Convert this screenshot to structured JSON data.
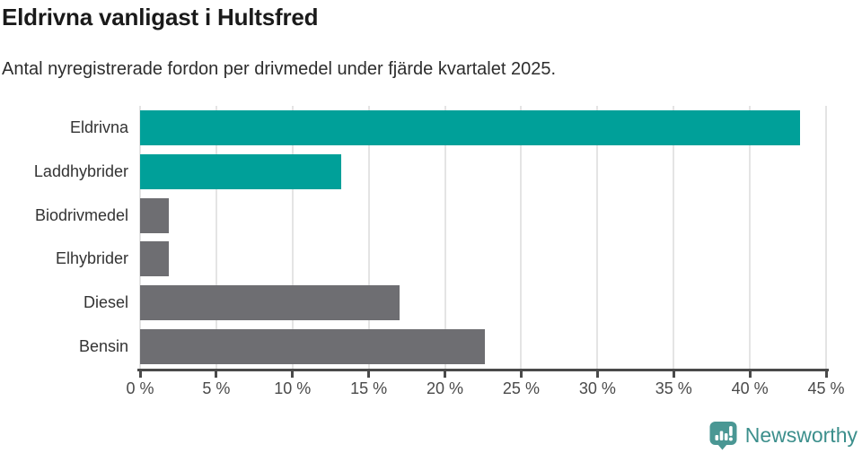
{
  "header": {
    "title": "Eldrivna vanligast i Hultsfred",
    "subtitle": "Antal nyregistrerade fordon per drivmedel under fjärde kvartalet 2025."
  },
  "chart_data": {
    "type": "bar",
    "orientation": "horizontal",
    "title": "Eldrivna vanligast i Hultsfred",
    "subtitle": "Antal nyregistrerade fordon per drivmedel under fjärde kvartalet 2025.",
    "categories": [
      "Eldrivna",
      "Laddhybrider",
      "Biodrivmedel",
      "Elhybrider",
      "Diesel",
      "Bensin"
    ],
    "values": [
      43.3,
      13.2,
      1.9,
      1.9,
      17.0,
      22.6
    ],
    "unit": "%",
    "bar_colors": [
      "#00a099",
      "#00a099",
      "#6e6e72",
      "#6e6e72",
      "#6e6e72",
      "#6e6e72"
    ],
    "xlabel": "",
    "ylabel": "",
    "xlim": [
      0,
      45
    ],
    "x_ticks": [
      0,
      5,
      10,
      15,
      20,
      25,
      30,
      35,
      40,
      45
    ],
    "x_tick_labels": [
      "0 %",
      "5 %",
      "10 %",
      "15 %",
      "20 %",
      "25 %",
      "30 %",
      "35 %",
      "40 %",
      "45 %"
    ],
    "grid": true,
    "legend": false
  },
  "footer": {
    "brand": "Newsworthy"
  },
  "colors": {
    "accent_teal": "#00a099",
    "neutral_gray": "#6e6e72",
    "brand_teal": "#3c8f8c",
    "logo_icon_teal": "#4a9794",
    "gridline": "#e4e4e4",
    "axis": "#4a4a4a"
  }
}
